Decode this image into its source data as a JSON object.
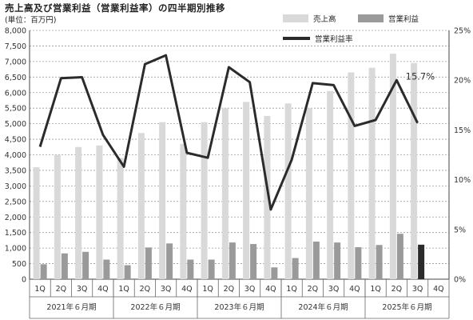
{
  "title": "売上高及び営業利益（営業利益率）の四半期別推移",
  "unit": "(単位：百万円)",
  "colors": {
    "sales": "#d9d9d9",
    "profit": "#9a9a9a",
    "profit_latest": "#2b2b2b",
    "margin_line": "#2b2b2b",
    "grid": "#9a9a9a"
  },
  "chart_data": {
    "type": "bar",
    "title": "売上高及び営業利益（営業利益率）の四半期別推移",
    "unit": "(単位：百万円)",
    "quarters": [
      "1Q",
      "2Q",
      "3Q",
      "4Q",
      "1Q",
      "2Q",
      "3Q",
      "4Q",
      "1Q",
      "2Q",
      "3Q",
      "4Q",
      "1Q",
      "2Q",
      "3Q",
      "4Q",
      "1Q",
      "2Q",
      "3Q",
      "4Q"
    ],
    "periods": [
      "2021年６月期",
      "2022年６月期",
      "2023年６月期",
      "2024年６月期",
      "2025年６月期"
    ],
    "series": [
      {
        "name": "売上高",
        "type": "bar",
        "axis": "left",
        "values": [
          3600,
          4000,
          4250,
          4300,
          3900,
          4700,
          5050,
          4350,
          5050,
          5500,
          5700,
          5250,
          5650,
          5500,
          6050,
          6650,
          6800,
          7250,
          6950,
          null
        ]
      },
      {
        "name": "営業利益",
        "type": "bar",
        "axis": "left",
        "values": [
          480,
          830,
          880,
          630,
          450,
          1020,
          1150,
          630,
          630,
          1180,
          1130,
          380,
          680,
          1210,
          1180,
          1030,
          1100,
          1460,
          1110,
          null
        ]
      },
      {
        "name": "営業利益率",
        "type": "line",
        "axis": "right",
        "values": [
          13.3,
          20.2,
          20.3,
          14.5,
          11.3,
          21.6,
          22.5,
          12.7,
          12.2,
          21.3,
          19.8,
          7.0,
          12.0,
          19.7,
          19.5,
          15.4,
          16.0,
          20.0,
          15.7,
          null
        ]
      }
    ],
    "annotation": "15.7%",
    "ylim_left": [
      0,
      8000
    ],
    "ylim_right": [
      0,
      25
    ],
    "yticks_left": [
      "0",
      "500",
      "1,000",
      "1,500",
      "2,000",
      "2,500",
      "3,000",
      "3,500",
      "4,000",
      "4,500",
      "5,000",
      "5,500",
      "6,000",
      "6,500",
      "7,000",
      "7,500",
      "8,000"
    ],
    "yticks_right": [
      "0%",
      "5%",
      "10%",
      "15%",
      "20%",
      "25%"
    ],
    "grid": true,
    "legend_position": "top-right"
  }
}
